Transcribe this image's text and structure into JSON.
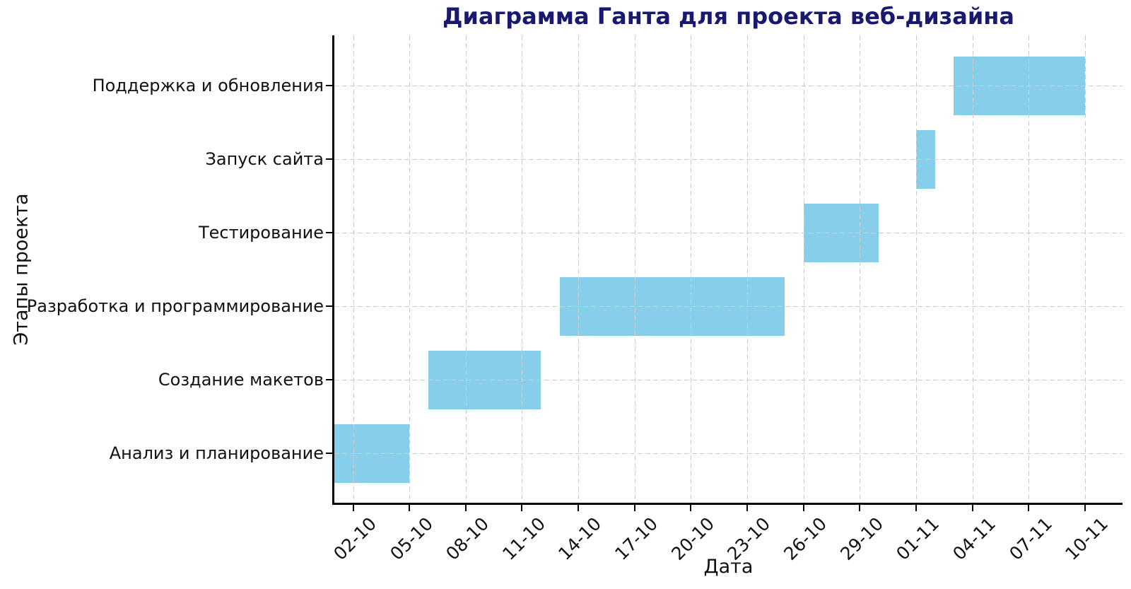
{
  "chart_data": {
    "type": "bar",
    "subtype": "gantt",
    "title": "Диаграмма Ганта для проекта веб-дизайна",
    "xlabel": "Дата",
    "ylabel": "Этапы проекта",
    "categories_top_to_bottom": [
      "Поддержка и обновления",
      "Запуск сайта",
      "Тестирование",
      "Разработка и программирование",
      "Создание макетов",
      "Анализ и планирование"
    ],
    "tasks": [
      {
        "name": "Анализ и планирование",
        "start": "01-10",
        "end": "05-10",
        "duration_days": 4
      },
      {
        "name": "Создание макетов",
        "start": "06-10",
        "end": "12-10",
        "duration_days": 6
      },
      {
        "name": "Разработка и программирование",
        "start": "13-10",
        "end": "25-10",
        "duration_days": 12
      },
      {
        "name": "Тестирование",
        "start": "26-10",
        "end": "30-10",
        "duration_days": 4
      },
      {
        "name": "Запуск сайта",
        "start": "01-11",
        "end": "02-11",
        "duration_days": 1
      },
      {
        "name": "Поддержка и обновления",
        "start": "03-11",
        "end": "10-11",
        "duration_days": 7
      }
    ],
    "x_ticks": [
      "02-10",
      "05-10",
      "08-10",
      "11-10",
      "14-10",
      "17-10",
      "20-10",
      "23-10",
      "26-10",
      "29-10",
      "01-11",
      "04-11",
      "07-11",
      "10-11"
    ],
    "x_range": [
      "01-10",
      "12-11"
    ],
    "tick_label_rotation_deg": 45,
    "grid": true,
    "grid_style": "dashed",
    "grid_above_bars": true,
    "legend": "none",
    "colors": {
      "bar_fill": "#87CEEB",
      "title_text": "#191970",
      "axis_text": "#111111",
      "grid_line": "#cccccc",
      "spine": "#000000",
      "background": "#ffffff"
    }
  }
}
